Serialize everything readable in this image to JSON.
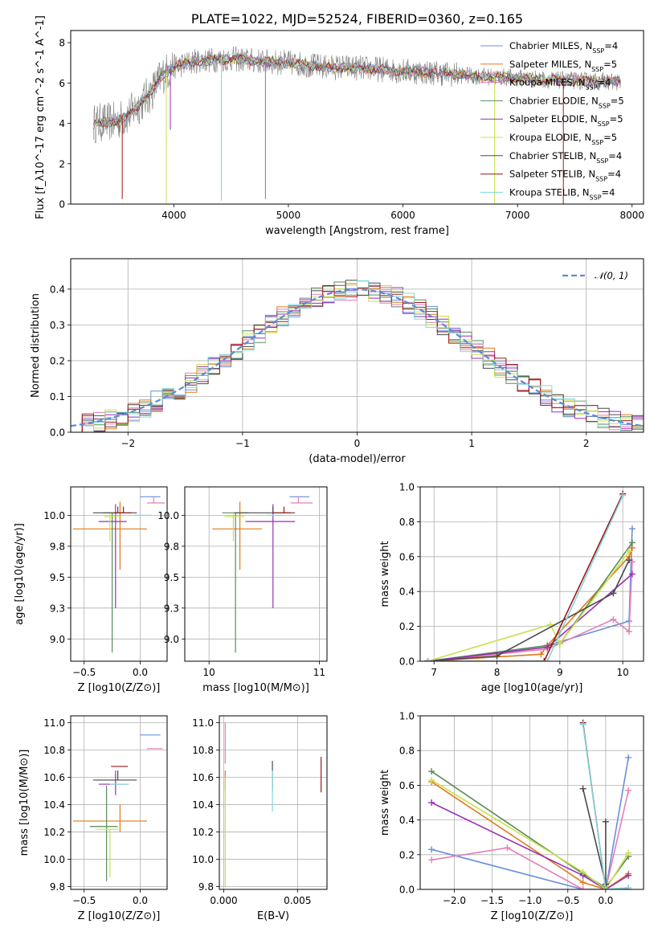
{
  "palette": {
    "Chabrier MILES": "#6a8fdc",
    "Salpeter MILES": "#e07a1a",
    "Kroupa MILES": "#e57fb6",
    "Chabrier ELODIE": "#5a8a5a",
    "Salpeter ELODIE": "#9b2fb5",
    "Kroupa ELODIE": "#c8e04a",
    "Chabrier STELIB": "#4a4a4a",
    "Salpeter STELIB": "#a01818",
    "Kroupa STELIB": "#7fd8dc",
    "data": "#808080",
    "normal": "#5b8ad6"
  },
  "chart_data": [
    {
      "id": "spectrum",
      "type": "line",
      "title": "PLATE=1022, MJD=52524, FIBERID=0360, z=0.165",
      "xlabel": "wavelength [Angstrom, rest frame]",
      "ylabel": "Flux [f_λ10^-17 erg cm^-2 s^-1 A^-1]",
      "xlim": [
        3100,
        8100
      ],
      "ylim": [
        0,
        8.6
      ],
      "xticks": [
        4000,
        5000,
        6000,
        7000,
        8000
      ],
      "yticks": [
        0,
        2,
        4,
        6,
        8
      ],
      "grid": false,
      "legend_position": "right",
      "series": [
        {
          "name": "Chabrier MILES, N_SSP=4",
          "color_key": "Chabrier MILES"
        },
        {
          "name": "Salpeter MILES, N_SSP=5",
          "color_key": "Salpeter MILES"
        },
        {
          "name": "Kroupa MILES, N_SSP=4",
          "color_key": "Kroupa MILES"
        },
        {
          "name": "Chabrier ELODIE, N_SSP=5",
          "color_key": "Chabrier ELODIE"
        },
        {
          "name": "Salpeter ELODIE, N_SSP=5",
          "color_key": "Salpeter ELODIE"
        },
        {
          "name": "Kroupa ELODIE, N_SSP=5",
          "color_key": "Kroupa ELODIE"
        },
        {
          "name": "Chabrier STELIB, N_SSP=4",
          "color_key": "Chabrier STELIB"
        },
        {
          "name": "Salpeter STELIB, N_SSP=4",
          "color_key": "Salpeter STELIB"
        },
        {
          "name": "Kroupa STELIB, N_SSP=4",
          "color_key": "Kroupa STELIB"
        }
      ],
      "continuum": {
        "wavelength": [
          3300,
          3500,
          3600,
          3800,
          3900,
          4000,
          4200,
          4500,
          4800,
          5000,
          5300,
          5600,
          6000,
          6300,
          6600,
          7000,
          7300,
          7600,
          7900
        ],
        "flux": [
          4.0,
          4.1,
          4.4,
          5.5,
          6.4,
          6.8,
          7.1,
          7.2,
          7.05,
          7.0,
          6.8,
          6.75,
          6.6,
          6.5,
          6.35,
          6.25,
          6.15,
          6.1,
          6.05
        ]
      },
      "absorption_lines": [
        {
          "wavelength": 3550,
          "model_key": "Salpeter STELIB",
          "depth": 4.0
        },
        {
          "wavelength": 3934,
          "model_key": "Kroupa ELODIE",
          "depth": 6.5
        },
        {
          "wavelength": 3970,
          "model_key": "Salpeter ELODIE",
          "depth": 3.0
        },
        {
          "wavelength": 4415,
          "model_key": "Kroupa STELIB",
          "depth": 7.0
        },
        {
          "wavelength": 4800,
          "model_key": "data",
          "depth": 6.8
        },
        {
          "wavelength": 6800,
          "model_key": "Kroupa ELODIE",
          "depth": 6.3
        },
        {
          "wavelength": 7400,
          "model_key": "Salpeter STELIB",
          "depth": 6.2
        }
      ]
    },
    {
      "id": "residuals",
      "type": "line",
      "xlabel": "(data-model)/error",
      "ylabel": "Normed distribution",
      "xlim": [
        -2.5,
        2.5
      ],
      "ylim": [
        0,
        0.485
      ],
      "xticks": [
        -2,
        -1,
        0,
        1,
        2
      ],
      "yticks": [
        0.0,
        0.1,
        0.2,
        0.3,
        0.4
      ],
      "grid": true,
      "legend_position": "top-right",
      "normal_label": "𝒩(0, 1)",
      "bins": {
        "start": -2.5,
        "width": 0.1,
        "count": 50
      }
    },
    {
      "id": "age_vs_Z",
      "type": "scatter",
      "xlabel": "Z [log10(Z/Z⊙)]",
      "ylabel": "age [log10(age/yr)]",
      "xlim": [
        -0.62,
        0.24
      ],
      "ylim": [
        8.82,
        10.23
      ],
      "xticks": [
        -0.5,
        0.0
      ],
      "yticks": [
        9.0,
        9.25,
        9.5,
        9.75,
        10.0
      ],
      "grid": true,
      "points": [
        {
          "model": "Chabrier MILES",
          "x": 0.1,
          "y": 10.15,
          "xerr": [
            0.1,
            0.08
          ],
          "yerr": [
            0.0,
            0.0
          ]
        },
        {
          "model": "Salpeter MILES",
          "x": -0.18,
          "y": 9.89,
          "xerr": [
            0.42,
            0.24
          ],
          "yerr": [
            0.33,
            0.22
          ]
        },
        {
          "model": "Kroupa MILES",
          "x": 0.12,
          "y": 10.1,
          "xerr": [
            0.06,
            0.1
          ],
          "yerr": [
            0.0,
            0.05
          ]
        },
        {
          "model": "Chabrier ELODIE",
          "x": -0.25,
          "y": 10.02,
          "xerr": [
            0.08,
            0.08
          ],
          "yerr": [
            1.13,
            0.0
          ]
        },
        {
          "model": "Salpeter ELODIE",
          "x": -0.22,
          "y": 9.95,
          "xerr": [
            0.15,
            0.1
          ],
          "yerr": [
            0.7,
            0.14
          ]
        },
        {
          "model": "Kroupa ELODIE",
          "x": -0.27,
          "y": 9.99,
          "xerr": [
            0.05,
            0.08
          ],
          "yerr": [
            0.2,
            0.02
          ]
        },
        {
          "model": "Chabrier STELIB",
          "x": -0.2,
          "y": 10.02,
          "xerr": [
            0.22,
            0.17
          ],
          "yerr": [
            0.0,
            0.05
          ]
        },
        {
          "model": "Salpeter STELIB",
          "x": -0.15,
          "y": 10.02,
          "xerr": [
            0.08,
            0.07
          ],
          "yerr": [
            0.0,
            0.05
          ]
        },
        {
          "model": "Kroupa STELIB",
          "x": 0.0,
          "y": 10.0,
          "xerr": [
            0.06,
            0.1
          ],
          "yerr": [
            0.0,
            0.0
          ]
        }
      ]
    },
    {
      "id": "age_vs_mass",
      "type": "scatter",
      "xlabel": "mass [log10(M/M⊙)]",
      "ylabel": "",
      "xlim": [
        9.78,
        11.07
      ],
      "ylim": [
        8.82,
        10.23
      ],
      "xticks": [
        10,
        11
      ],
      "yticks": [
        9.0,
        9.25,
        9.5,
        9.75,
        10.0
      ],
      "grid": true,
      "points": [
        {
          "model": "Chabrier MILES",
          "x": 10.91,
          "y": 10.15,
          "xerr": [
            0.18,
            0.0
          ],
          "yerr": [
            0.0,
            0.0
          ]
        },
        {
          "model": "Salpeter MILES",
          "x": 10.28,
          "y": 9.89,
          "xerr": [
            0.25,
            0.2
          ],
          "yerr": [
            0.33,
            0.22
          ]
        },
        {
          "model": "Kroupa MILES",
          "x": 10.81,
          "y": 10.1,
          "xerr": [
            0.07,
            0.13
          ],
          "yerr": [
            0.0,
            0.05
          ]
        },
        {
          "model": "Chabrier ELODIE",
          "x": 10.24,
          "y": 10.02,
          "xerr": [
            0.12,
            0.12
          ],
          "yerr": [
            1.13,
            0.0
          ]
        },
        {
          "model": "Salpeter ELODIE",
          "x": 10.58,
          "y": 9.95,
          "xerr": [
            0.25,
            0.2
          ],
          "yerr": [
            0.7,
            0.14
          ]
        },
        {
          "model": "Kroupa ELODIE",
          "x": 10.22,
          "y": 9.99,
          "xerr": [
            0.08,
            0.1
          ],
          "yerr": [
            0.2,
            0.02
          ]
        },
        {
          "model": "Chabrier STELIB",
          "x": 10.58,
          "y": 10.02,
          "xerr": [
            0.35,
            0.2
          ],
          "yerr": [
            0.0,
            0.05
          ]
        },
        {
          "model": "Salpeter STELIB",
          "x": 10.68,
          "y": 10.02,
          "xerr": [
            0.1,
            0.06
          ],
          "yerr": [
            0.0,
            0.05
          ]
        },
        {
          "model": "Kroupa STELIB",
          "x": 10.58,
          "y": 10.0,
          "xerr": [
            0.06,
            0.1
          ],
          "yerr": [
            0.0,
            0.0
          ]
        }
      ]
    },
    {
      "id": "weight_vs_age",
      "type": "line",
      "xlabel": "age [log10(age/yr)]",
      "ylabel": "mass weight",
      "xlim": [
        6.78,
        10.33
      ],
      "ylim": [
        0,
        1.0
      ],
      "xticks": [
        7,
        8,
        9,
        10
      ],
      "yticks": [
        0.0,
        0.2,
        0.4,
        0.6,
        0.8,
        1.0
      ],
      "grid": true,
      "series": [
        {
          "model": "Chabrier MILES",
          "x": [
            6.9,
            8.8,
            10.1,
            10.15
          ],
          "y": [
            0.0,
            0.09,
            0.23,
            0.76
          ]
        },
        {
          "model": "Salpeter MILES",
          "x": [
            6.9,
            8.7,
            8.8,
            10.1,
            10.15
          ],
          "y": [
            0.0,
            0.04,
            0.09,
            0.6,
            0.65
          ]
        },
        {
          "model": "Kroupa MILES",
          "x": [
            6.9,
            8.8,
            9.85,
            10.1,
            10.15
          ],
          "y": [
            0.0,
            0.07,
            0.24,
            0.17,
            0.57
          ]
        },
        {
          "model": "Chabrier ELODIE",
          "x": [
            6.9,
            8.8,
            9.0,
            10.15
          ],
          "y": [
            0.0,
            0.09,
            0.1,
            0.68
          ]
        },
        {
          "model": "Salpeter ELODIE",
          "x": [
            6.9,
            8.8,
            10.15
          ],
          "y": [
            0.0,
            0.08,
            0.5
          ]
        },
        {
          "model": "Kroupa ELODIE",
          "x": [
            6.9,
            8.85,
            9.0,
            10.1
          ],
          "y": [
            0.0,
            0.21,
            0.1,
            0.63
          ]
        },
        {
          "model": "Chabrier STELIB",
          "x": [
            6.9,
            8.0,
            9.85,
            10.1
          ],
          "y": [
            0.0,
            0.03,
            0.39,
            0.58
          ]
        },
        {
          "model": "Salpeter STELIB",
          "x": [
            6.9,
            8.75,
            10.0
          ],
          "y": [
            0.0,
            0.0,
            0.96
          ]
        },
        {
          "model": "Kroupa STELIB",
          "x": [
            6.9,
            8.8,
            10.0
          ],
          "y": [
            0.0,
            0.0,
            0.95
          ]
        }
      ]
    },
    {
      "id": "mass_vs_Z",
      "type": "scatter",
      "xlabel": "Z [log10(Z/Z⊙)]",
      "ylabel": "mass [log10(M/M⊙)]",
      "xlim": [
        -0.62,
        0.24
      ],
      "ylim": [
        9.78,
        11.05
      ],
      "xticks": [
        -0.5,
        0.0
      ],
      "yticks": [
        9.8,
        10.0,
        10.2,
        10.4,
        10.6,
        10.8,
        11.0
      ],
      "grid": true,
      "points": [
        {
          "model": "Chabrier MILES",
          "x": 0.1,
          "y": 10.91,
          "xerr": [
            0.1,
            0.08
          ],
          "yerr": [
            0.0,
            0.0
          ]
        },
        {
          "model": "Salpeter MILES",
          "x": -0.18,
          "y": 10.28,
          "xerr": [
            0.42,
            0.24
          ],
          "yerr": [
            0.08,
            0.12
          ]
        },
        {
          "model": "Kroupa MILES",
          "x": 0.12,
          "y": 10.81,
          "xerr": [
            0.06,
            0.08
          ],
          "yerr": [
            0.0,
            0.0
          ]
        },
        {
          "model": "Chabrier ELODIE",
          "x": -0.3,
          "y": 10.24,
          "xerr": [
            0.15,
            0.1
          ],
          "yerr": [
            0.4,
            0.3
          ]
        },
        {
          "model": "Salpeter ELODIE",
          "x": -0.22,
          "y": 10.55,
          "xerr": [
            0.15,
            0.1
          ],
          "yerr": [
            0.08,
            0.1
          ]
        },
        {
          "model": "Kroupa ELODIE",
          "x": -0.27,
          "y": 10.22,
          "xerr": [
            0.12,
            0.08
          ],
          "yerr": [
            0.35,
            0.0
          ]
        },
        {
          "model": "Chabrier STELIB",
          "x": -0.2,
          "y": 10.58,
          "xerr": [
            0.22,
            0.17
          ],
          "yerr": [
            0.0,
            0.07
          ]
        },
        {
          "model": "Salpeter STELIB",
          "x": -0.18,
          "y": 10.68,
          "xerr": [
            0.08,
            0.07
          ],
          "yerr": [
            0.0,
            0.0
          ]
        },
        {
          "model": "Kroupa STELIB",
          "x": -0.2,
          "y": 10.55,
          "xerr": [
            0.07,
            0.1
          ],
          "yerr": [
            0.0,
            0.0
          ]
        }
      ]
    },
    {
      "id": "mass_vs_ebv",
      "type": "scatter",
      "xlabel": "E(B-V)",
      "ylabel": "",
      "xlim": [
        -0.0003,
        0.007
      ],
      "ylim": [
        9.78,
        11.05
      ],
      "xticks": [
        0.0,
        0.005
      ],
      "yticks": [
        9.8,
        10.0,
        10.2,
        10.4,
        10.6,
        10.8,
        11.0
      ],
      "grid": true,
      "points": [
        {
          "model": "Kroupa MILES",
          "x": 0.0001,
          "y": 10.85,
          "xerr": [
            0,
            0
          ],
          "yerr": [
            0.15,
            0.15
          ]
        },
        {
          "model": "Salpeter MILES",
          "x": 0.0001,
          "y": 10.6,
          "xerr": [
            0,
            0
          ],
          "yerr": [
            0.1,
            0.05
          ]
        },
        {
          "model": "Kroupa ELODIE",
          "x": 0.0001,
          "y": 10.2,
          "xerr": [
            0,
            0
          ],
          "yerr": [
            0.4,
            0.4
          ]
        },
        {
          "model": "Chabrier STELIB",
          "x": 0.0033,
          "y": 10.6,
          "xerr": [
            0,
            0
          ],
          "yerr": [
            0.1,
            0.12
          ]
        },
        {
          "model": "Kroupa STELIB",
          "x": 0.0033,
          "y": 10.5,
          "xerr": [
            0,
            0
          ],
          "yerr": [
            0.15,
            0.15
          ]
        },
        {
          "model": "Salpeter STELIB",
          "x": 0.0066,
          "y": 10.62,
          "xerr": [
            0,
            0
          ],
          "yerr": [
            0.13,
            0.13
          ]
        }
      ]
    },
    {
      "id": "weight_vs_Z",
      "type": "line",
      "xlabel": "Z [log10(Z/Z⊙)]",
      "ylabel": "mass weight",
      "xlim": [
        -2.45,
        0.5
      ],
      "ylim": [
        0,
        1.0
      ],
      "xticks": [
        -2.0,
        -1.5,
        -1.0,
        -0.5,
        0.0
      ],
      "yticks": [
        0.0,
        0.2,
        0.4,
        0.6,
        0.8,
        1.0
      ],
      "grid": true,
      "series": [
        {
          "model": "Chabrier MILES",
          "x": [
            -2.3,
            -0.3,
            0.0,
            0.3
          ],
          "y": [
            0.23,
            0.0,
            0.0,
            0.76
          ]
        },
        {
          "model": "Salpeter MILES",
          "x": [
            -2.3,
            -0.3,
            0.0,
            0.3
          ],
          "y": [
            0.62,
            0.04,
            0.0,
            0.09
          ]
        },
        {
          "model": "Kroupa MILES",
          "x": [
            -2.3,
            -1.3,
            -0.3,
            0.0,
            0.3
          ],
          "y": [
            0.17,
            0.24,
            0.0,
            0.0,
            0.57
          ]
        },
        {
          "model": "Chabrier ELODIE",
          "x": [
            -2.3,
            -0.3,
            0.0,
            0.3
          ],
          "y": [
            0.68,
            0.09,
            0.01,
            0.19
          ]
        },
        {
          "model": "Salpeter ELODIE",
          "x": [
            -2.3,
            -0.3,
            0.0,
            0.3
          ],
          "y": [
            0.5,
            0.08,
            0.0,
            0.08
          ]
        },
        {
          "model": "Kroupa ELODIE",
          "x": [
            -2.3,
            -0.3,
            0.0,
            0.3
          ],
          "y": [
            0.63,
            0.1,
            0.0,
            0.21
          ]
        },
        {
          "model": "Chabrier STELIB",
          "x": [
            -0.3,
            0.0,
            0.0
          ],
          "y": [
            0.58,
            0.03,
            0.39
          ]
        },
        {
          "model": "Salpeter STELIB",
          "x": [
            -0.3,
            0.0,
            0.3
          ],
          "y": [
            0.96,
            0.0,
            0.0
          ]
        },
        {
          "model": "Kroupa STELIB",
          "x": [
            -0.3,
            0.0,
            0.3
          ],
          "y": [
            0.95,
            0.0,
            0.01
          ]
        }
      ]
    }
  ]
}
